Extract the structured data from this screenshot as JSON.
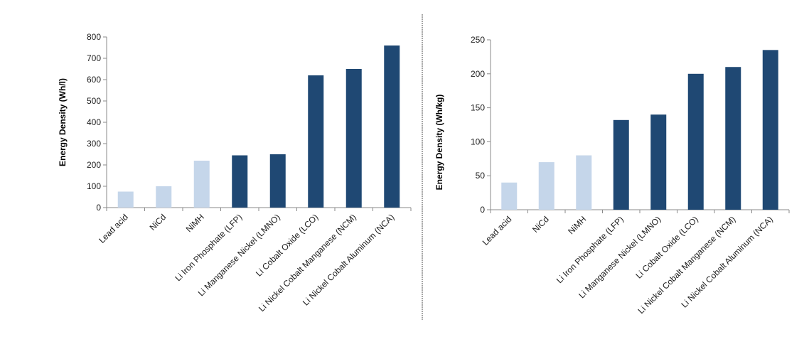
{
  "chart_data": [
    {
      "type": "bar",
      "title": "",
      "xlabel": "",
      "ylabel": "Energy Density (Wh/l)",
      "ylim": [
        0,
        800
      ],
      "yticks": [
        0,
        100,
        200,
        300,
        400,
        500,
        600,
        700,
        800
      ],
      "grid": false,
      "categories": [
        "Lead acid",
        "NiCd",
        "NiMH",
        "Li Iron Phosphate (LFP)",
        "Li Manganese Nickel (LMNO)",
        "Li Cobalt Oxide (LCO)",
        "Li Nickel Cobalt Manganese (NCM)",
        "Li Nickel Cobalt Aluminum (NCA)"
      ],
      "values": [
        75,
        100,
        220,
        245,
        250,
        620,
        650,
        760
      ],
      "colors": [
        "#c5d6ea",
        "#c5d6ea",
        "#c5d6ea",
        "#1f4873",
        "#1f4873",
        "#1f4873",
        "#1f4873",
        "#1f4873"
      ]
    },
    {
      "type": "bar",
      "title": "",
      "xlabel": "",
      "ylabel": "Energy Density (Wh/kg)",
      "ylim": [
        0,
        250
      ],
      "yticks": [
        0,
        50,
        100,
        150,
        200,
        250
      ],
      "grid": false,
      "categories": [
        "Lead acid",
        "NiCd",
        "NiMH",
        "Li Iron Phosphate (LFP)",
        "Li Manganese Nickel (LMNO)",
        "Li Cobalt Oxide (LCO)",
        "Li Nickel Cobalt Manganese (NCM)",
        "Li Nickel Cobalt Aluminum (NCA)"
      ],
      "values": [
        40,
        70,
        80,
        132,
        140,
        200,
        210,
        235
      ],
      "colors": [
        "#c5d6ea",
        "#c5d6ea",
        "#c5d6ea",
        "#1f4873",
        "#1f4873",
        "#1f4873",
        "#1f4873",
        "#1f4873"
      ]
    }
  ]
}
